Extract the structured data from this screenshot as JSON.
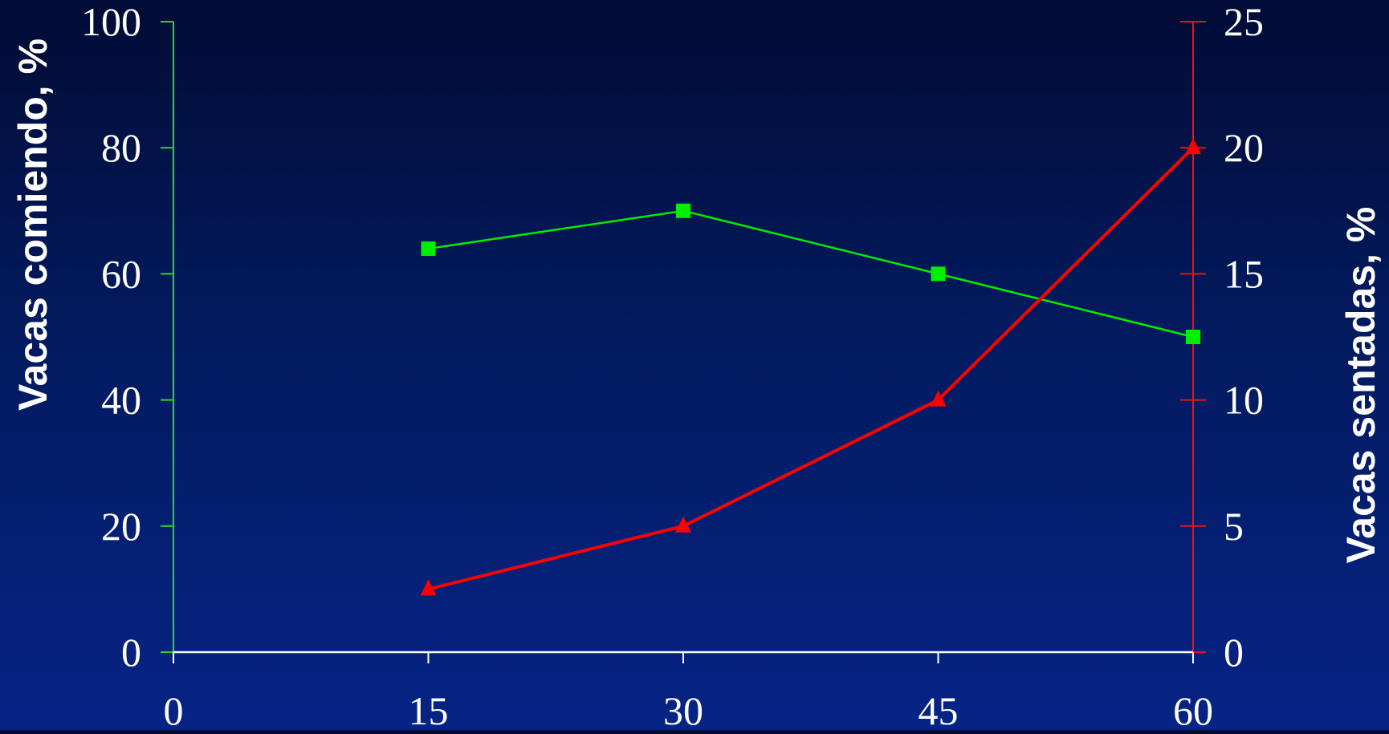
{
  "chart_data": {
    "type": "line",
    "x": [
      15,
      30,
      45,
      60
    ],
    "x_ticks": [
      "0",
      "15",
      "30",
      "45",
      "60"
    ],
    "xlim": [
      0,
      60
    ],
    "y_left": {
      "label": "Vacas comiendo, %",
      "ylim": [
        0,
        100
      ],
      "ticks": [
        "0",
        "20",
        "40",
        "60",
        "80",
        "100"
      ],
      "color": "#22dd22"
    },
    "y_right": {
      "label": "Vacas sentadas, %",
      "ylim": [
        0,
        25
      ],
      "ticks": [
        "0",
        "5",
        "10",
        "15",
        "20",
        "25"
      ],
      "color": "#ee1111"
    },
    "series": [
      {
        "axis": "left",
        "marker": "square",
        "color": "#00ee00",
        "values": [
          64,
          70,
          60,
          50
        ]
      },
      {
        "axis": "right",
        "marker": "triangle",
        "color": "#ff0000",
        "values": [
          2.5,
          5,
          10,
          20
        ]
      }
    ],
    "grid": false,
    "legend": "none"
  }
}
